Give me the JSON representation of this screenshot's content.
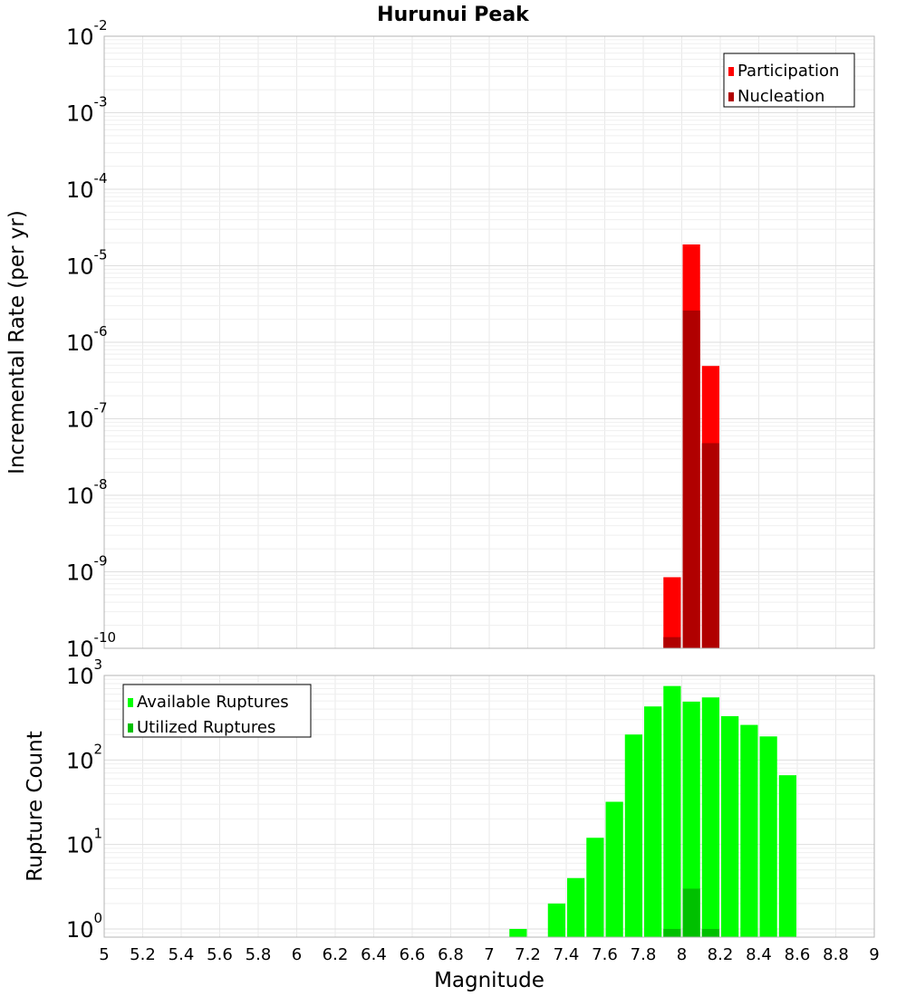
{
  "chart_data": [
    {
      "type": "bar",
      "title": "Hurunui Peak",
      "xlabel": "",
      "ylabel": "Incremental Rate (per yr)",
      "yscale": "log",
      "xlim": [
        5,
        9
      ],
      "ylim": [
        1e-10,
        0.01
      ],
      "ytick_exponents": [
        -10,
        -9,
        -8,
        -7,
        -6,
        -5,
        -4,
        -3,
        -2
      ],
      "bin_width": 0.1,
      "grid": true,
      "legend_position": "top-right",
      "series": [
        {
          "name": "Participation",
          "color": "#ff0000",
          "x": [
            7.95,
            8.05,
            8.15
          ],
          "values": [
            8.5e-10,
            1.9e-05,
            4.9e-07
          ]
        },
        {
          "name": "Nucleation",
          "color": "#b00000",
          "x": [
            7.95,
            8.05,
            8.15
          ],
          "values": [
            1.4e-10,
            2.6e-06,
            4.8e-08
          ]
        }
      ]
    },
    {
      "type": "bar",
      "xlabel": "Magnitude",
      "ylabel": "Rupture Count",
      "yscale": "log",
      "xlim": [
        5,
        9
      ],
      "ylim": [
        0.8,
        1000
      ],
      "ytick_exponents": [
        0,
        1,
        2,
        3
      ],
      "xticks": [
        "5",
        "5.2",
        "5.4",
        "5.6",
        "5.8",
        "6",
        "6.2",
        "6.4",
        "6.6",
        "6.8",
        "7",
        "7.2",
        "7.4",
        "7.6",
        "7.8",
        "8",
        "8.2",
        "8.4",
        "8.6",
        "8.8",
        "9"
      ],
      "bin_width": 0.1,
      "grid": true,
      "legend_position": "top-left",
      "series": [
        {
          "name": "Available Ruptures",
          "color": "#00ff00",
          "x": [
            7.15,
            7.35,
            7.45,
            7.55,
            7.65,
            7.75,
            7.85,
            7.95,
            8.05,
            8.15,
            8.25,
            8.35,
            8.45,
            8.55
          ],
          "values": [
            1,
            2,
            4,
            12,
            32,
            200,
            430,
            750,
            490,
            550,
            330,
            260,
            190,
            66
          ]
        },
        {
          "name": "Utilized Ruptures",
          "color": "#00c000",
          "x": [
            7.95,
            8.05,
            8.15
          ],
          "values": [
            1,
            3,
            1
          ]
        }
      ]
    }
  ]
}
